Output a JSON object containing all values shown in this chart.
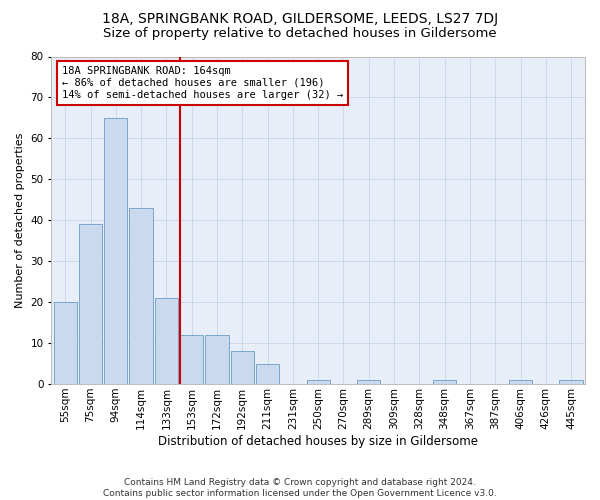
{
  "title": "18A, SPRINGBANK ROAD, GILDERSOME, LEEDS, LS27 7DJ",
  "subtitle": "Size of property relative to detached houses in Gildersome",
  "xlabel": "Distribution of detached houses by size in Gildersome",
  "ylabel": "Number of detached properties",
  "bar_color": "#cad9ed",
  "bar_edge_color": "#6b9dc8",
  "background_color": "#e8eef8",
  "categories": [
    "55sqm",
    "75sqm",
    "94sqm",
    "114sqm",
    "133sqm",
    "153sqm",
    "172sqm",
    "192sqm",
    "211sqm",
    "231sqm",
    "250sqm",
    "270sqm",
    "289sqm",
    "309sqm",
    "328sqm",
    "348sqm",
    "367sqm",
    "387sqm",
    "406sqm",
    "426sqm",
    "445sqm"
  ],
  "values": [
    20,
    39,
    65,
    43,
    21,
    12,
    12,
    8,
    5,
    0,
    1,
    0,
    1,
    0,
    0,
    1,
    0,
    0,
    1,
    0,
    1
  ],
  "ylim": [
    0,
    80
  ],
  "yticks": [
    0,
    10,
    20,
    30,
    40,
    50,
    60,
    70,
    80
  ],
  "annotation_text": "18A SPRINGBANK ROAD: 164sqm\n← 86% of detached houses are smaller (196)\n14% of semi-detached houses are larger (32) →",
  "annotation_box_color": "#ffffff",
  "annotation_box_edge": "#cc0000",
  "vline_color": "#cc0000",
  "vline_x_index": 4.55,
  "footer": "Contains HM Land Registry data © Crown copyright and database right 2024.\nContains public sector information licensed under the Open Government Licence v3.0.",
  "grid_color": "#c8d4e8",
  "title_fontsize": 10,
  "subtitle_fontsize": 9.5,
  "xlabel_fontsize": 8.5,
  "ylabel_fontsize": 8,
  "tick_fontsize": 7.5,
  "footer_fontsize": 6.5,
  "annotation_fontsize": 7.5
}
